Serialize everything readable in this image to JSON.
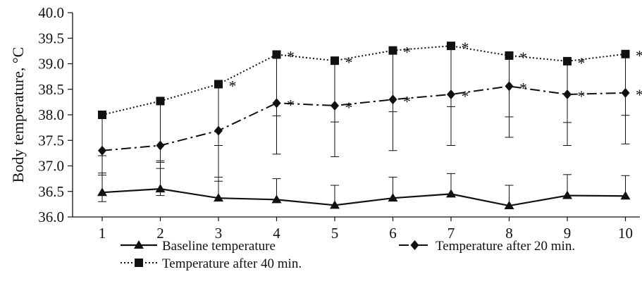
{
  "chart_data": {
    "type": "line",
    "ylabel": "Body temperature, °C",
    "xlabel": "",
    "x": [
      1,
      2,
      3,
      4,
      5,
      6,
      7,
      8,
      9,
      10
    ],
    "x_tick_labels": [
      "1",
      "2",
      "3",
      "4",
      "5",
      "6",
      "7",
      "8",
      "9",
      "10"
    ],
    "ylim": [
      36.0,
      40.0
    ],
    "y_ticks": [
      36.0,
      36.5,
      37.0,
      37.5,
      38.0,
      38.5,
      39.0,
      39.5,
      40.0
    ],
    "y_tick_labels": [
      "36.0",
      "36.5",
      "37.0",
      "37.5",
      "38.0",
      "38.5",
      "39.0",
      "39.5",
      "40.0"
    ],
    "grid": false,
    "legend_position": "bottom",
    "significance_marker": "*",
    "series": [
      {
        "name": "Baseline temperature",
        "marker": "triangle",
        "line_style": "solid",
        "color": "#111111",
        "values": [
          36.48,
          36.55,
          36.37,
          36.34,
          36.23,
          36.37,
          36.45,
          36.22,
          36.42,
          36.41
        ],
        "error_upper": [
          36.86,
          37.1,
          36.78,
          36.75,
          36.62,
          36.78,
          36.85,
          36.62,
          36.83,
          36.81
        ],
        "error_lower": [
          36.3,
          36.42,
          null,
          null,
          null,
          null,
          null,
          null,
          null,
          null
        ],
        "significant": [
          false,
          false,
          false,
          false,
          false,
          false,
          false,
          false,
          false,
          false
        ]
      },
      {
        "name": "Temperature after 20 min.",
        "marker": "diamond",
        "line_style": "dashdot",
        "color": "#111111",
        "values": [
          37.3,
          37.4,
          37.69,
          38.23,
          38.18,
          38.3,
          38.4,
          38.56,
          38.4,
          38.43
        ],
        "error_upper": [
          null,
          null,
          null,
          null,
          null,
          null,
          null,
          null,
          null,
          null
        ],
        "error_lower": [
          36.82,
          36.95,
          36.7,
          37.23,
          37.18,
          37.3,
          37.4,
          37.56,
          37.4,
          37.43
        ],
        "significant": [
          false,
          false,
          false,
          true,
          true,
          true,
          true,
          true,
          true,
          true
        ]
      },
      {
        "name": "Temperature after 40 min.",
        "marker": "square",
        "line_style": "dotted",
        "color": "#111111",
        "values": [
          38.0,
          38.27,
          38.6,
          39.18,
          39.06,
          39.26,
          39.35,
          39.16,
          39.05,
          39.19
        ],
        "error_upper": [
          null,
          null,
          null,
          null,
          null,
          null,
          null,
          null,
          null,
          null
        ],
        "error_lower": [
          37.2,
          37.07,
          37.4,
          37.98,
          37.86,
          38.06,
          38.16,
          37.96,
          37.85,
          37.99
        ],
        "significant": [
          false,
          false,
          true,
          true,
          true,
          true,
          true,
          true,
          true,
          true
        ]
      }
    ]
  }
}
